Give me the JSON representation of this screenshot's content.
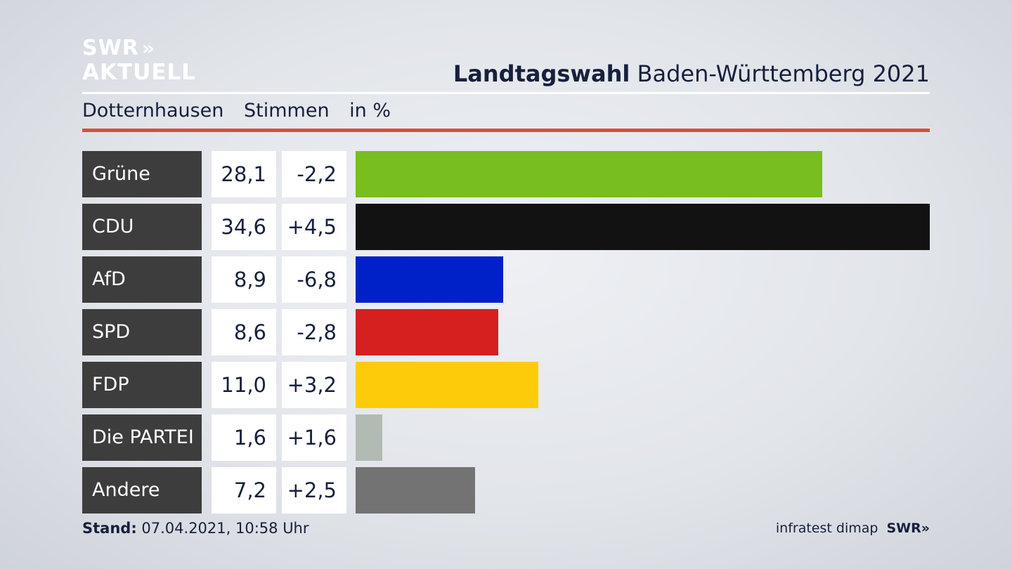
{
  "brand": {
    "logo_line1": "SWR",
    "logo_line2": "AKTUELL",
    "logo_chevrons": "»"
  },
  "header": {
    "title_bold": "Landtagswahl",
    "title_rest": "Baden-Württemberg 2021"
  },
  "subheader": {
    "location": "Dotternhausen",
    "measure": "Stimmen",
    "unit": "in %"
  },
  "chart_data": {
    "type": "bar",
    "orientation": "horizontal",
    "categories": [
      "Grüne",
      "CDU",
      "AfD",
      "SPD",
      "FDP",
      "Die PARTEI",
      "Andere"
    ],
    "values": [
      28.1,
      34.6,
      8.9,
      8.6,
      11.0,
      1.6,
      7.2
    ],
    "value_labels": [
      "28,1",
      "34,6",
      "8,9",
      "8,6",
      "11,0",
      "1,6",
      "7,2"
    ],
    "change_labels": [
      "-2,2",
      "+4,5",
      "-6,8",
      "-2,8",
      "+3,2",
      "+1,6",
      "+2,5"
    ],
    "changes": [
      -2.2,
      4.5,
      -6.8,
      -2.8,
      3.2,
      1.6,
      2.5
    ],
    "colors": [
      "#78be1e",
      "#121212",
      "#0021c8",
      "#d61f1f",
      "#fecb0a",
      "#b2bab4",
      "#737373"
    ],
    "xlim": [
      0,
      34.6
    ],
    "grid": false,
    "legend": "none"
  },
  "footer": {
    "stand_label": "Stand:",
    "stand_value": "07.04.2021, 10:58 Uhr",
    "source": "infratest dimap",
    "source_brand": "SWR",
    "source_chevrons": "»"
  }
}
